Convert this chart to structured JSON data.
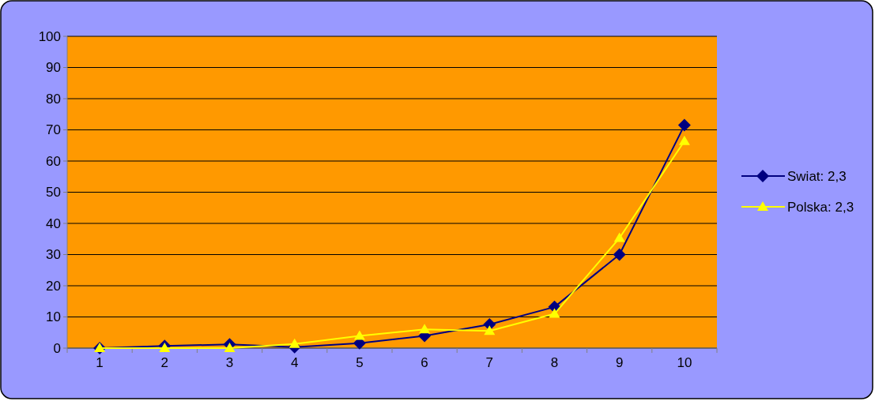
{
  "chart_data": {
    "type": "line",
    "categories": [
      "1",
      "2",
      "3",
      "4",
      "5",
      "6",
      "7",
      "8",
      "9",
      "10"
    ],
    "series": [
      {
        "name": "Swiat: 2,3",
        "color": "#000080",
        "marker": "diamond",
        "values": [
          0,
          0.7,
          1.2,
          0.3,
          1.6,
          3.9,
          7.6,
          13.2,
          30,
          71.5
        ]
      },
      {
        "name": "Polska: 2,3",
        "color": "#ffff00",
        "marker": "triangle",
        "values": [
          0,
          0,
          0,
          1.3,
          3.9,
          6,
          5.5,
          11,
          35.3,
          66.4
        ]
      }
    ],
    "ylim": [
      0,
      100
    ],
    "yticks": [
      0,
      10,
      20,
      30,
      40,
      50,
      60,
      70,
      80,
      90,
      100
    ],
    "grid": "y",
    "legend": "right",
    "line_style": "solid"
  }
}
